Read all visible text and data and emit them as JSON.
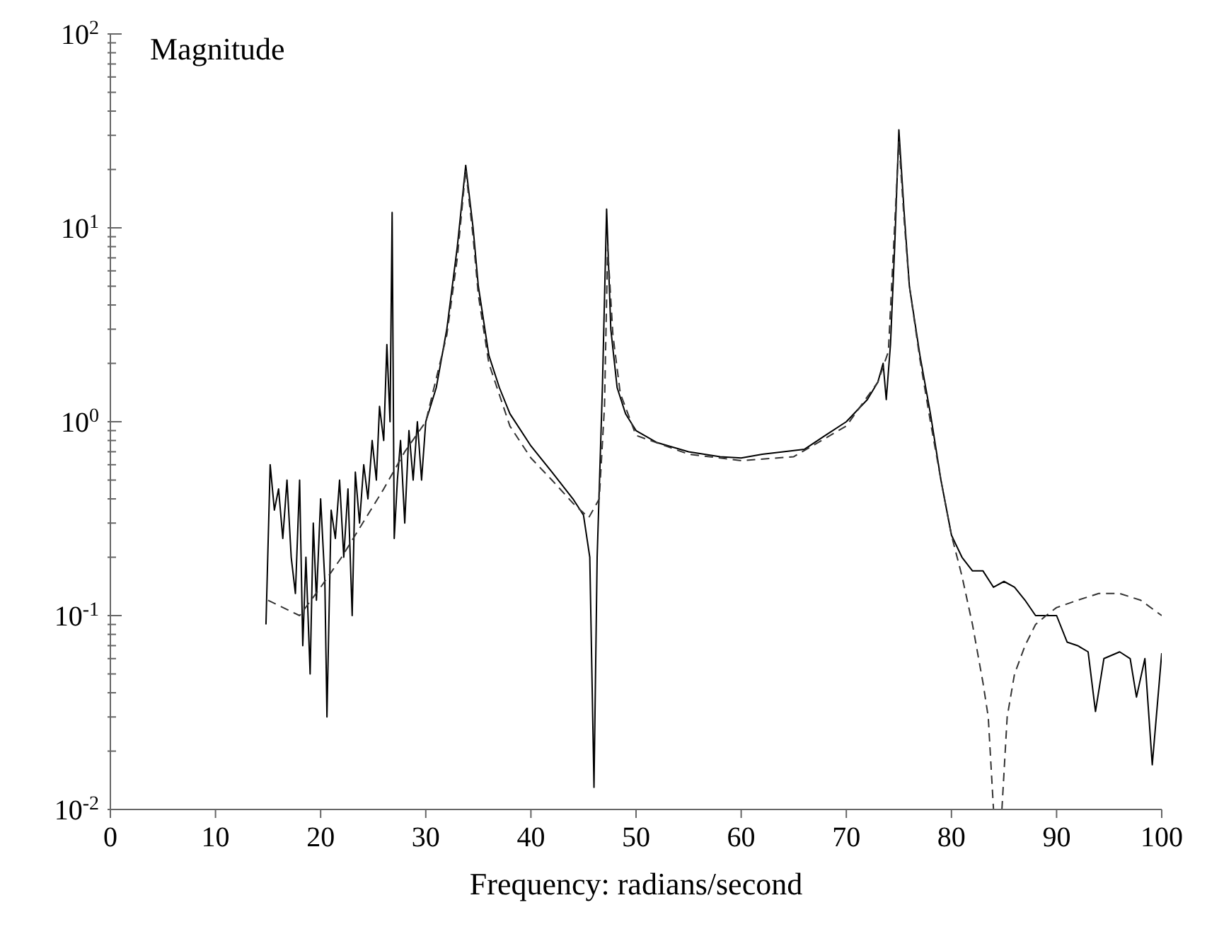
{
  "chart_data": {
    "type": "line",
    "ylabel": "Magnitude",
    "xlabel": "Frequency: radians/second",
    "log": "y",
    "marker": "none",
    "xlim": [
      0,
      100
    ],
    "xticks": [
      0,
      10,
      20,
      30,
      40,
      50,
      60,
      70,
      80,
      90,
      100
    ],
    "ylim": [
      0.01,
      100
    ],
    "yticks": [
      {
        "value": 0.01,
        "label": "10$^{-2}$"
      },
      {
        "value": 0.02,
        "label": null
      },
      {
        "value": 0.03,
        "label": null
      },
      {
        "value": 0.04,
        "label": null
      },
      {
        "value": 0.05,
        "label": null
      },
      {
        "value": 0.06,
        "label": null
      },
      {
        "value": 0.07,
        "label": null
      },
      {
        "value": 0.08,
        "label": null
      },
      {
        "value": 0.09,
        "label": null
      },
      {
        "value": 0.1,
        "label": "10$^{-1}$"
      },
      {
        "value": 0.2,
        "label": null
      },
      {
        "value": 0.3,
        "label": null
      },
      {
        "value": 0.4,
        "label": null
      },
      {
        "value": 0.5,
        "label": null
      },
      {
        "value": 0.6,
        "label": null
      },
      {
        "value": 0.7,
        "label": null
      },
      {
        "value": 0.8,
        "label": null
      },
      {
        "value": 0.9,
        "label": null
      },
      {
        "value": 1,
        "label": "10$^{0}$"
      },
      {
        "value": 2,
        "label": null
      },
      {
        "value": 3,
        "label": null
      },
      {
        "value": 4,
        "label": null
      },
      {
        "value": 5,
        "label": null
      },
      {
        "value": 6,
        "label": null
      },
      {
        "value": 7,
        "label": null
      },
      {
        "value": 8,
        "label": null
      },
      {
        "value": 9,
        "label": null
      },
      {
        "value": 10,
        "label": "10$^{1}$"
      },
      {
        "value": 20,
        "label": null
      },
      {
        "value": 30,
        "label": null
      },
      {
        "value": 40,
        "label": null
      },
      {
        "value": 50,
        "label": null
      },
      {
        "value": 60,
        "label": null
      },
      {
        "value": 70,
        "label": null
      },
      {
        "value": 80,
        "label": null
      },
      {
        "value": 90,
        "label": null
      },
      {
        "value": 100,
        "label": "10$^{2}$"
      }
    ],
    "series": [
      {
        "color": "#000000",
        "line_style": "solid",
        "x": [
          14.8,
          15.2,
          15.6,
          16,
          16.4,
          16.8,
          17.2,
          17.6,
          18,
          18.3,
          18.6,
          19,
          19.3,
          19.6,
          20,
          20.4,
          20.6,
          21,
          21.4,
          21.8,
          22.2,
          22.6,
          23,
          23.3,
          23.7,
          24.1,
          24.5,
          24.9,
          25.3,
          25.6,
          26,
          26.3,
          26.6,
          26.8,
          27,
          27.3,
          27.6,
          28,
          28.4,
          28.8,
          29.2,
          29.6,
          30,
          31,
          32,
          33,
          33.8,
          34.5,
          35,
          36,
          37,
          38,
          40,
          42,
          44,
          45,
          45.6,
          46,
          46.3,
          46.8,
          47.2,
          47.6,
          48.2,
          49,
          50,
          52,
          55,
          58,
          60,
          62,
          64,
          66,
          68,
          70,
          72,
          73,
          73.5,
          73.8,
          74.2,
          74.6,
          75,
          75.5,
          76,
          77,
          78,
          79,
          80,
          81,
          82,
          83,
          84,
          85,
          86,
          87,
          88,
          89,
          90,
          91,
          92,
          93,
          93.7,
          94.5,
          96,
          97,
          97.6,
          98.4,
          99.1,
          100
        ],
        "values": [
          0.09,
          0.6,
          0.35,
          0.45,
          0.25,
          0.5,
          0.2,
          0.13,
          0.5,
          0.07,
          0.2,
          0.05,
          0.3,
          0.12,
          0.4,
          0.15,
          0.03,
          0.35,
          0.25,
          0.5,
          0.2,
          0.45,
          0.1,
          0.55,
          0.3,
          0.6,
          0.4,
          0.8,
          0.5,
          1.2,
          0.8,
          2.5,
          1.0,
          12,
          0.25,
          0.5,
          0.8,
          0.3,
          0.9,
          0.5,
          1.0,
          0.5,
          1.0,
          1.5,
          3,
          8,
          21,
          10,
          5,
          2.2,
          1.5,
          1.1,
          0.75,
          0.55,
          0.4,
          0.33,
          0.2,
          0.013,
          0.2,
          1.5,
          12.5,
          3,
          1.5,
          1.1,
          0.9,
          0.78,
          0.7,
          0.66,
          0.65,
          0.68,
          0.7,
          0.72,
          0.85,
          1.0,
          1.3,
          1.6,
          2.0,
          1.3,
          2.5,
          8,
          32,
          12,
          5,
          2.2,
          1.1,
          0.5,
          0.26,
          0.2,
          0.17,
          0.17,
          0.14,
          0.15,
          0.14,
          0.12,
          0.1,
          0.1,
          0.1,
          0.073,
          0.07,
          0.065,
          0.032,
          0.06,
          0.065,
          0.06,
          0.038,
          0.06,
          0.017,
          0.064
        ]
      },
      {
        "color": "#333333",
        "line_style": "dashed",
        "x": [
          15,
          18,
          20,
          22,
          24,
          26,
          28,
          30,
          32,
          33,
          33.8,
          34.5,
          35,
          36,
          38,
          40,
          42,
          44,
          45.5,
          46.5,
          47,
          47.3,
          47.8,
          48.5,
          50,
          55,
          60,
          65,
          70,
          73,
          74,
          75,
          75.5,
          76,
          77,
          78,
          79,
          80,
          81,
          82,
          83,
          83.5,
          84,
          84.8,
          85.3,
          86,
          87,
          88,
          89,
          90,
          92,
          94,
          96,
          98,
          100
        ],
        "values": [
          0.12,
          0.1,
          0.14,
          0.2,
          0.3,
          0.45,
          0.7,
          1.0,
          2.8,
          7,
          20,
          9,
          4.5,
          2,
          0.95,
          0.65,
          0.5,
          0.38,
          0.32,
          0.4,
          1.2,
          8,
          2.8,
          1.4,
          0.85,
          0.68,
          0.63,
          0.66,
          0.95,
          1.6,
          2.3,
          28,
          11,
          5,
          2.1,
          1.0,
          0.5,
          0.26,
          0.16,
          0.09,
          0.045,
          0.03,
          0.01,
          0.01,
          0.03,
          0.05,
          0.07,
          0.09,
          0.1,
          0.11,
          0.12,
          0.13,
          0.13,
          0.12,
          0.1
        ]
      }
    ]
  }
}
